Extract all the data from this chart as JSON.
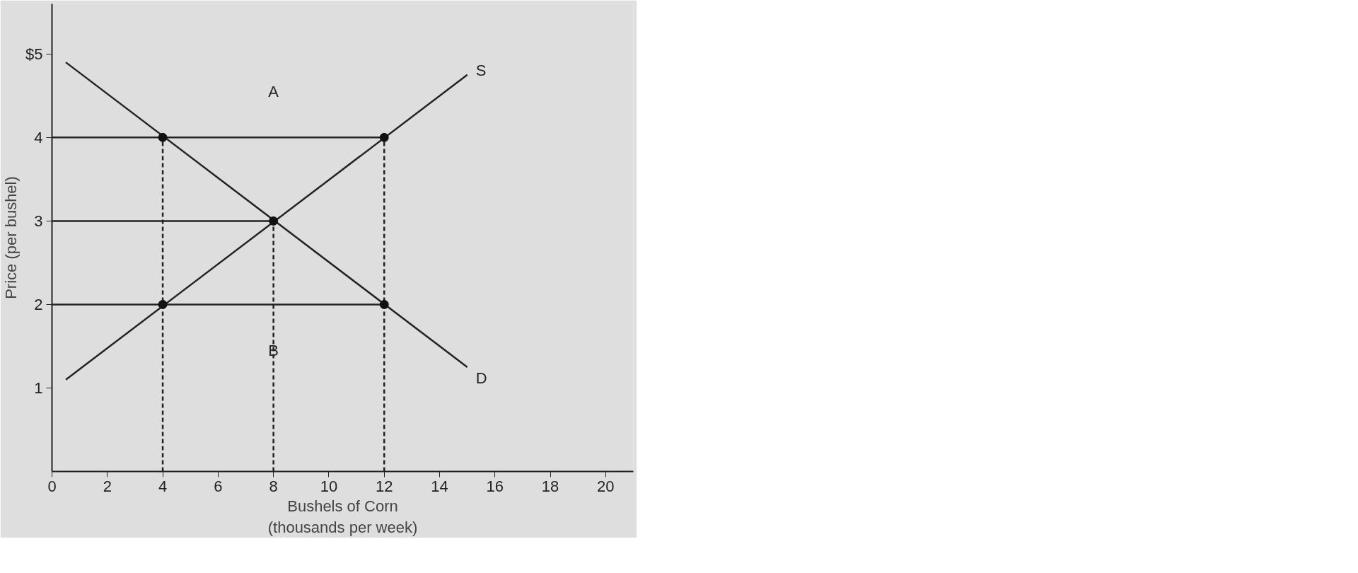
{
  "chart_data": {
    "type": "line",
    "xlabel": "Bushels of Corn\n(thousands per week)",
    "ylabel": "Price (per bushel)",
    "xlim": [
      0,
      21
    ],
    "ylim": [
      0,
      5.6
    ],
    "xticks": [
      0,
      2,
      4,
      6,
      8,
      10,
      12,
      14,
      16,
      18,
      20
    ],
    "yticks": [
      1,
      2,
      3,
      4,
      {
        "value": 5,
        "label": "$5"
      }
    ],
    "grid": false,
    "legend": false,
    "marker": "none",
    "line_style": "solid",
    "annotations": [
      "A",
      "B"
    ],
    "series": [
      {
        "name": "S",
        "color": "#222222",
        "x": [
          0.5,
          15
        ],
        "values": [
          1.1,
          4.75
        ]
      },
      {
        "name": "D",
        "color": "#222222",
        "x": [
          0.5,
          15
        ],
        "values": [
          4.9,
          1.25
        ]
      },
      {
        "color": "#222222",
        "x": [
          0,
          12
        ],
        "values": [
          4,
          4
        ]
      },
      {
        "color": "#222222",
        "x": [
          0,
          8
        ],
        "values": [
          3,
          3
        ]
      },
      {
        "color": "#222222",
        "x": [
          0,
          12
        ],
        "values": [
          2,
          2
        ]
      },
      {
        "color": "#222222",
        "line_style": "dashed",
        "x": [
          4,
          4
        ],
        "values": [
          0,
          4
        ]
      },
      {
        "color": "#222222",
        "line_style": "dashed",
        "x": [
          8,
          8
        ],
        "values": [
          0,
          3
        ]
      },
      {
        "color": "#222222",
        "line_style": "dashed",
        "x": [
          12,
          12
        ],
        "values": [
          0,
          4
        ]
      },
      {
        "type": "scatter",
        "color": "#111111",
        "marker": "circle",
        "x": [
          4,
          8,
          12,
          4,
          12
        ],
        "values": [
          4,
          3,
          4,
          2,
          2
        ]
      }
    ]
  }
}
